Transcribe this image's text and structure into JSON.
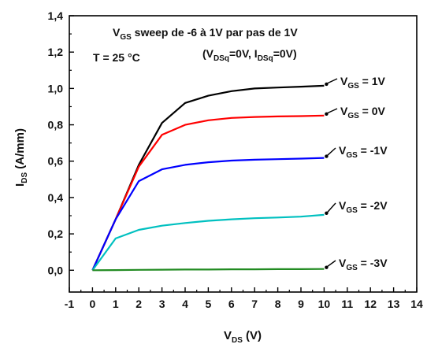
{
  "chart_data": {
    "type": "line",
    "xlabel": {
      "main": "V",
      "sub": "DS",
      "rest": " (V)"
    },
    "ylabel": {
      "main": "I",
      "sub": "DS",
      "rest": " (A/mm)"
    },
    "xlim": [
      -1,
      14
    ],
    "ylim": [
      -0.12,
      1.4
    ],
    "x_ticks": [
      -1,
      0,
      1,
      2,
      3,
      4,
      5,
      6,
      7,
      8,
      9,
      10,
      11,
      12,
      13,
      14
    ],
    "x_tick_labels": [
      "-1",
      "0",
      "1",
      "2",
      "3",
      "4",
      "5",
      "6",
      "7",
      "8",
      "9",
      "10",
      "11",
      "12",
      "13",
      "14"
    ],
    "y_ticks": [
      0.0,
      0.2,
      0.4,
      0.6,
      0.8,
      1.0,
      1.2,
      1.4
    ],
    "y_tick_labels": [
      "0,0",
      "0,2",
      "0,4",
      "0,6",
      "0,8",
      "1,0",
      "1,2",
      "1,4"
    ],
    "grid": false,
    "annotations": {
      "sweep": {
        "v": "V",
        "sub": "GS",
        "rest": " sweep de -6 à 1V par pas de 1V"
      },
      "temperature": "T = 25 °C",
      "quiescent": {
        "p1": "(V",
        "s1": "DSq",
        "p2": "=0V, I",
        "s2": "DSq",
        "p3": "=0V)"
      }
    },
    "series": [
      {
        "color": "#000000",
        "label": {
          "v": "V",
          "sub": "GS",
          "val": "= 1V"
        },
        "x": [
          0,
          1,
          2,
          3,
          4,
          5,
          6,
          7,
          8,
          9,
          10
        ],
        "y": [
          0,
          0.28,
          0.58,
          0.81,
          0.92,
          0.96,
          0.985,
          1.0,
          1.005,
          1.01,
          1.015
        ]
      },
      {
        "color": "#ff0000",
        "label": {
          "v": "V",
          "sub": "GS",
          "val": "= 0V"
        },
        "x": [
          0,
          1,
          2,
          3,
          4,
          5,
          6,
          7,
          8,
          9,
          10
        ],
        "y": [
          0,
          0.28,
          0.57,
          0.745,
          0.8,
          0.825,
          0.838,
          0.843,
          0.846,
          0.848,
          0.851
        ]
      },
      {
        "color": "#0000ff",
        "label": {
          "v": "V",
          "sub": "GS",
          "val": "= -1V"
        },
        "x": [
          0,
          1,
          2,
          3,
          4,
          5,
          6,
          7,
          8,
          9,
          10
        ],
        "y": [
          0,
          0.28,
          0.49,
          0.555,
          0.58,
          0.594,
          0.603,
          0.608,
          0.611,
          0.614,
          0.618
        ]
      },
      {
        "color": "#00c0c0",
        "label": {
          "v": "V",
          "sub": "GS",
          "val": "= -2V"
        },
        "x": [
          0,
          1,
          2,
          3,
          4,
          5,
          6,
          7,
          8,
          9,
          10
        ],
        "y": [
          0,
          0.175,
          0.222,
          0.245,
          0.26,
          0.272,
          0.28,
          0.286,
          0.29,
          0.295,
          0.305
        ]
      },
      {
        "color": "#228b22",
        "label": {
          "v": "V",
          "sub": "GS",
          "val": "= -3V"
        },
        "x": [
          0,
          1,
          2,
          3,
          4,
          5,
          6,
          7,
          8,
          9,
          10
        ],
        "y": [
          0,
          0.001,
          0.002,
          0.003,
          0.004,
          0.004,
          0.005,
          0.005,
          0.006,
          0.006,
          0.007
        ]
      }
    ]
  }
}
